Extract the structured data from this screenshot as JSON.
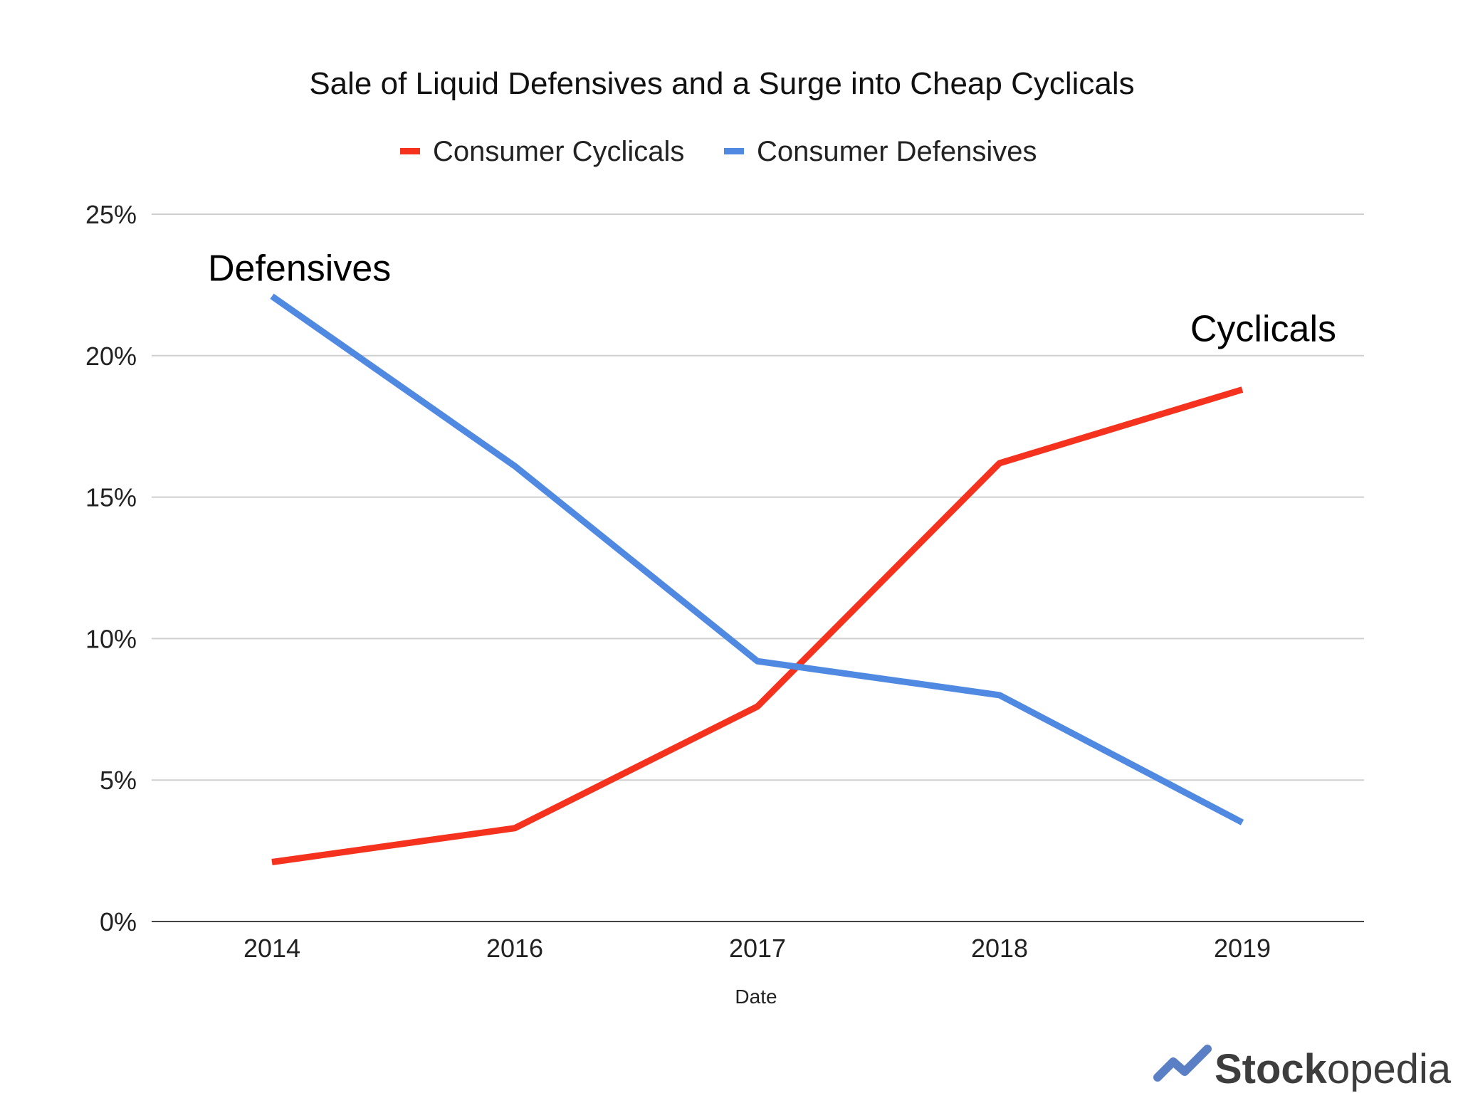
{
  "chart_data": {
    "type": "line",
    "title": "Sale of Liquid Defensives and a Surge into Cheap Cyclicals",
    "xlabel": "Date",
    "ylabel": "",
    "categories": [
      "2014",
      "2016",
      "2017",
      "2018",
      "2019"
    ],
    "ylim": [
      0,
      25
    ],
    "yticks": [
      "0%",
      "5%",
      "10%",
      "15%",
      "20%",
      "25%"
    ],
    "ytick_values": [
      0,
      5,
      10,
      15,
      20,
      25
    ],
    "grid": true,
    "legend_position": "top-center",
    "series": [
      {
        "name": "Consumer Cyclicals",
        "color": "#f4321e",
        "values": [
          2.1,
          3.3,
          7.6,
          16.2,
          18.8
        ]
      },
      {
        "name": "Consumer Defensives",
        "color": "#5089e2",
        "values": [
          22.1,
          16.1,
          9.2,
          8.0,
          3.5
        ]
      }
    ],
    "annotations": [
      {
        "text": "Defensives",
        "series": "Consumer Defensives",
        "anchor": "start"
      },
      {
        "text": "Cyclicals",
        "series": "Consumer Cyclicals",
        "anchor": "end"
      }
    ]
  },
  "branding": {
    "logo_prefix": "Stock",
    "logo_suffix": "opedia",
    "logo_icon": "trend-check-icon",
    "logo_color": "#5b7fc4"
  }
}
